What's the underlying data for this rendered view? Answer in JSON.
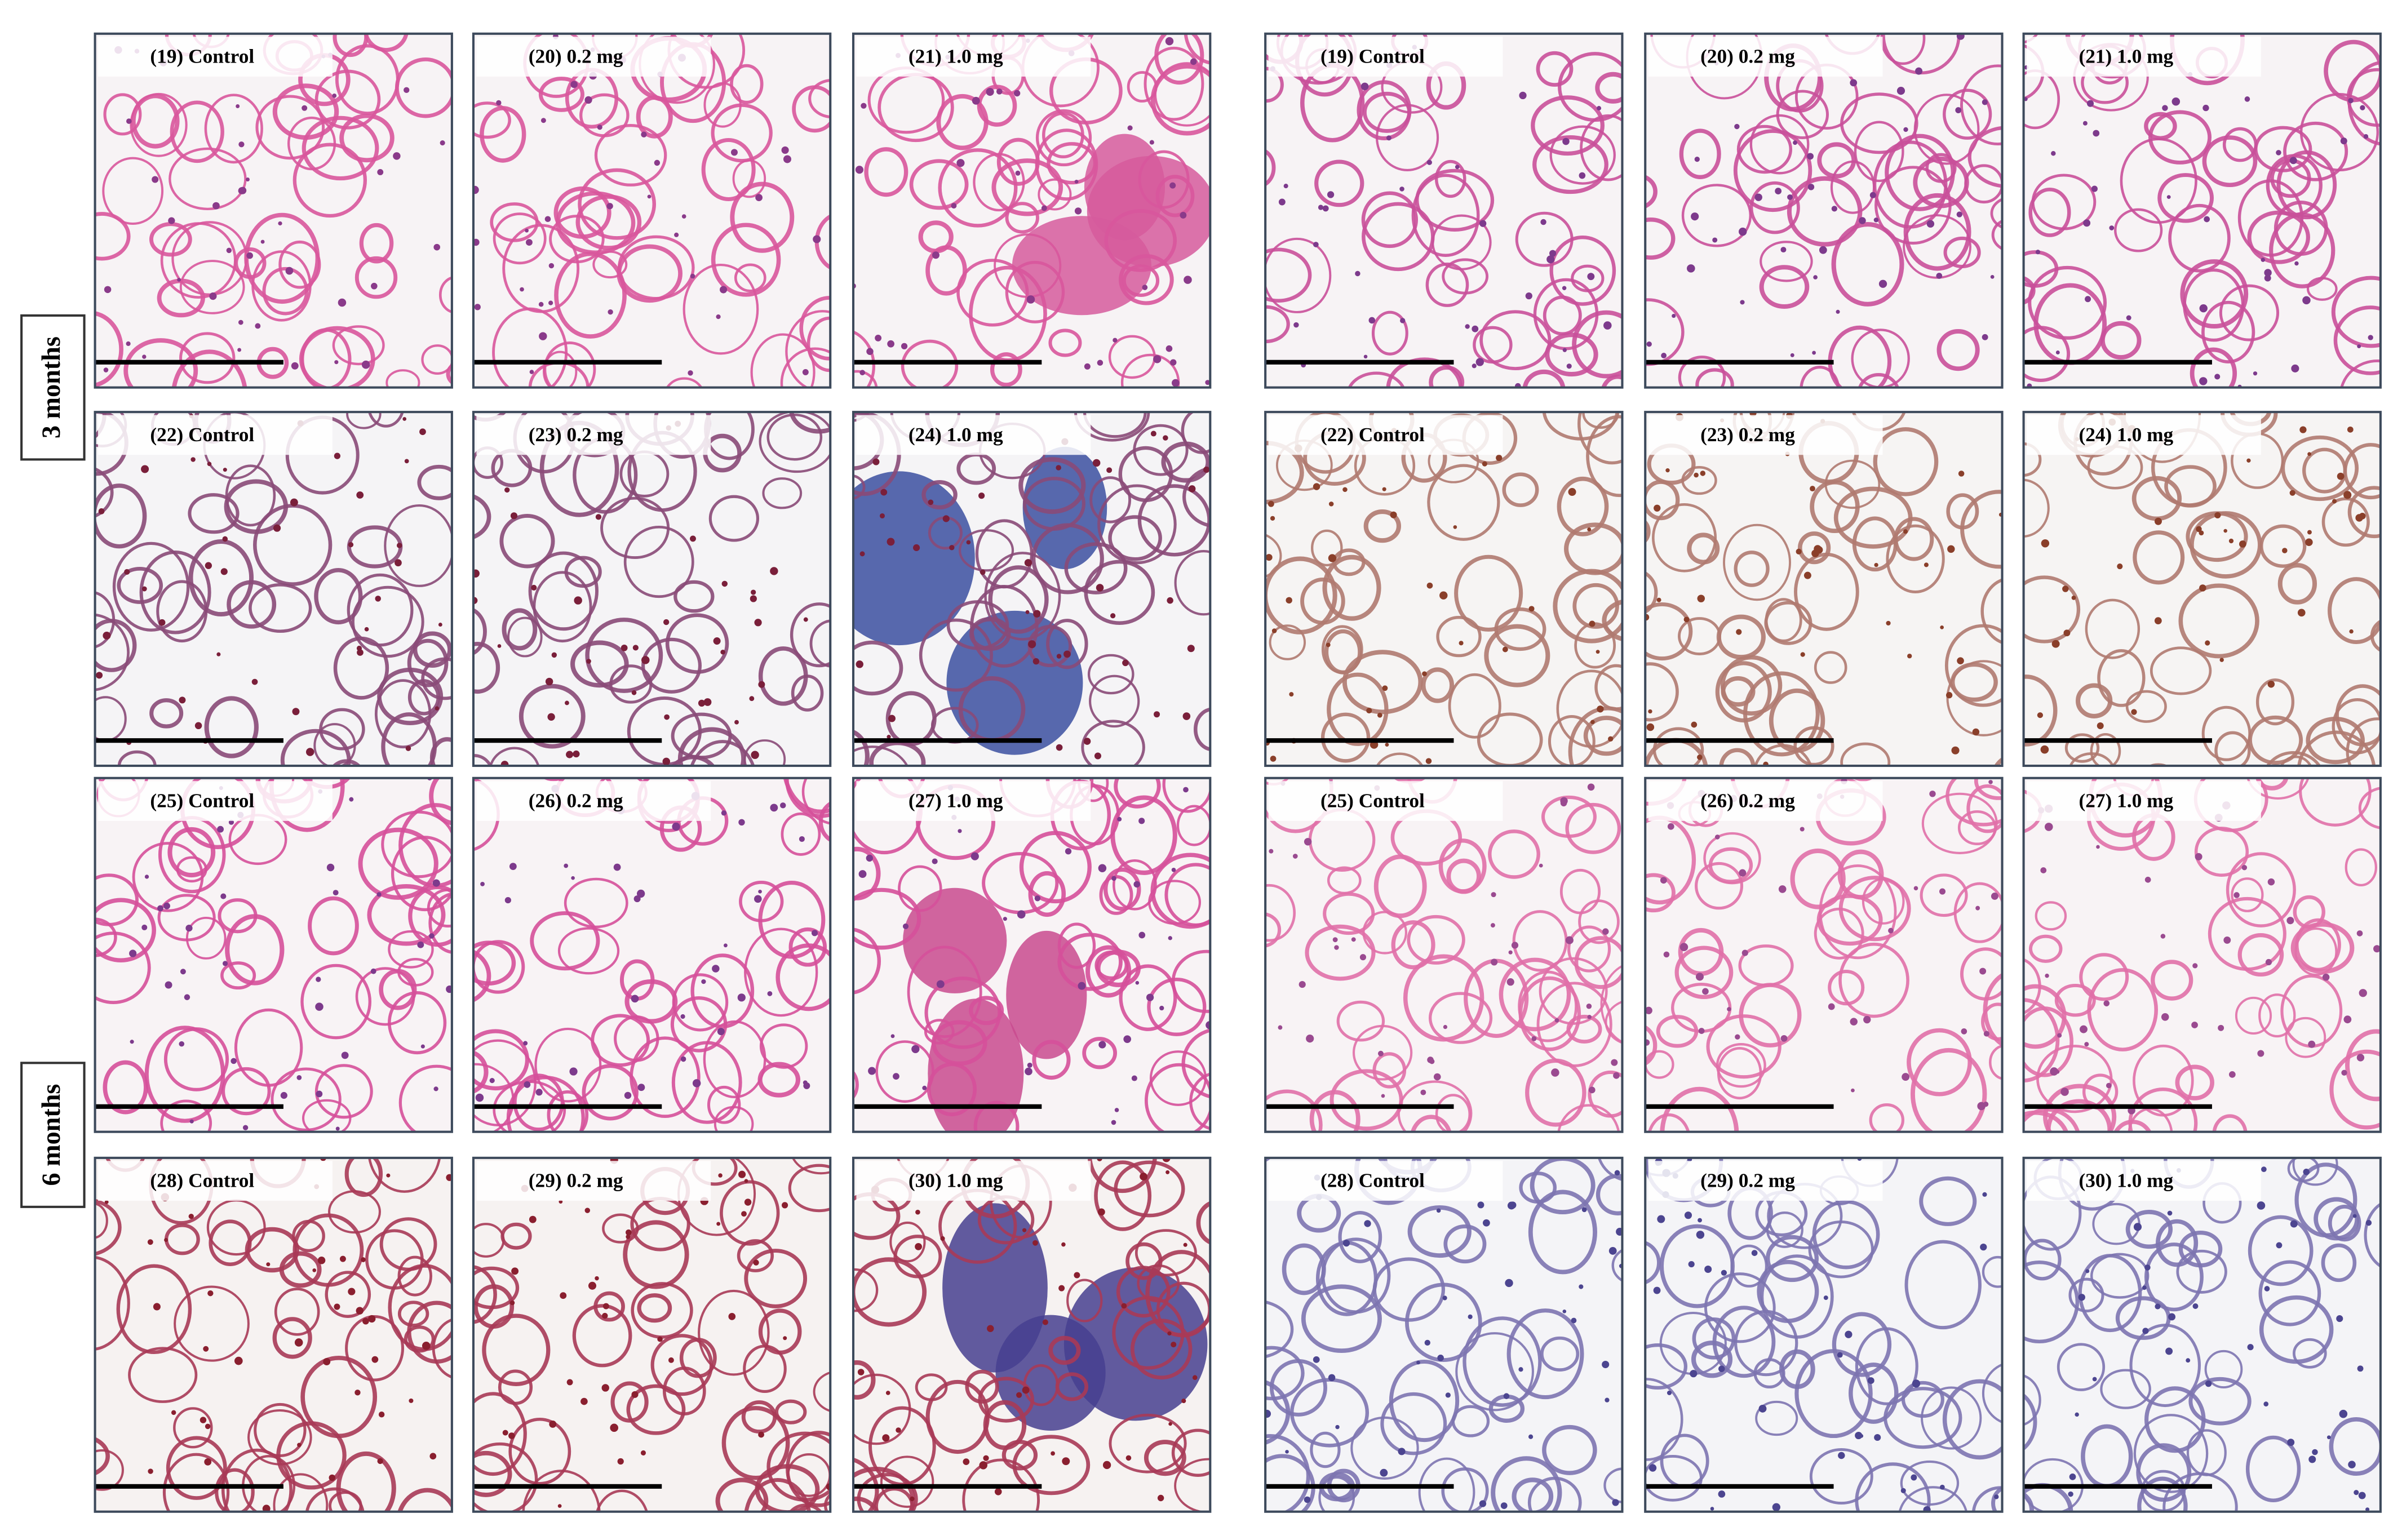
{
  "row_labels": [
    "3 months",
    "6 months"
  ],
  "groups": [
    {
      "rows": [
        [
          "(19) Control",
          "(20) 0.2 mg",
          "(21) 1.0 mg"
        ],
        [
          "(22) Control",
          "(23) 0.2 mg",
          "(24) 1.0 mg"
        ],
        [
          "(25) Control",
          "(26) 0.2 mg",
          "(27) 1.0 mg"
        ],
        [
          "(28) Control",
          "(29) 0.2 mg",
          "(30) 1.0 mg"
        ]
      ]
    },
    {
      "rows": [
        [
          "(19) Control",
          "(20) 0.2 mg",
          "(21) 1.0 mg"
        ],
        [
          "(22) Control",
          "(23) 0.2 mg",
          "(24) 1.0 mg"
        ],
        [
          "(25) Control",
          "(26) 0.2 mg",
          "(27) 1.0 mg"
        ],
        [
          "(28) Control",
          "(29) 0.2 mg",
          "(30) 1.0 mg"
        ]
      ]
    }
  ]
}
